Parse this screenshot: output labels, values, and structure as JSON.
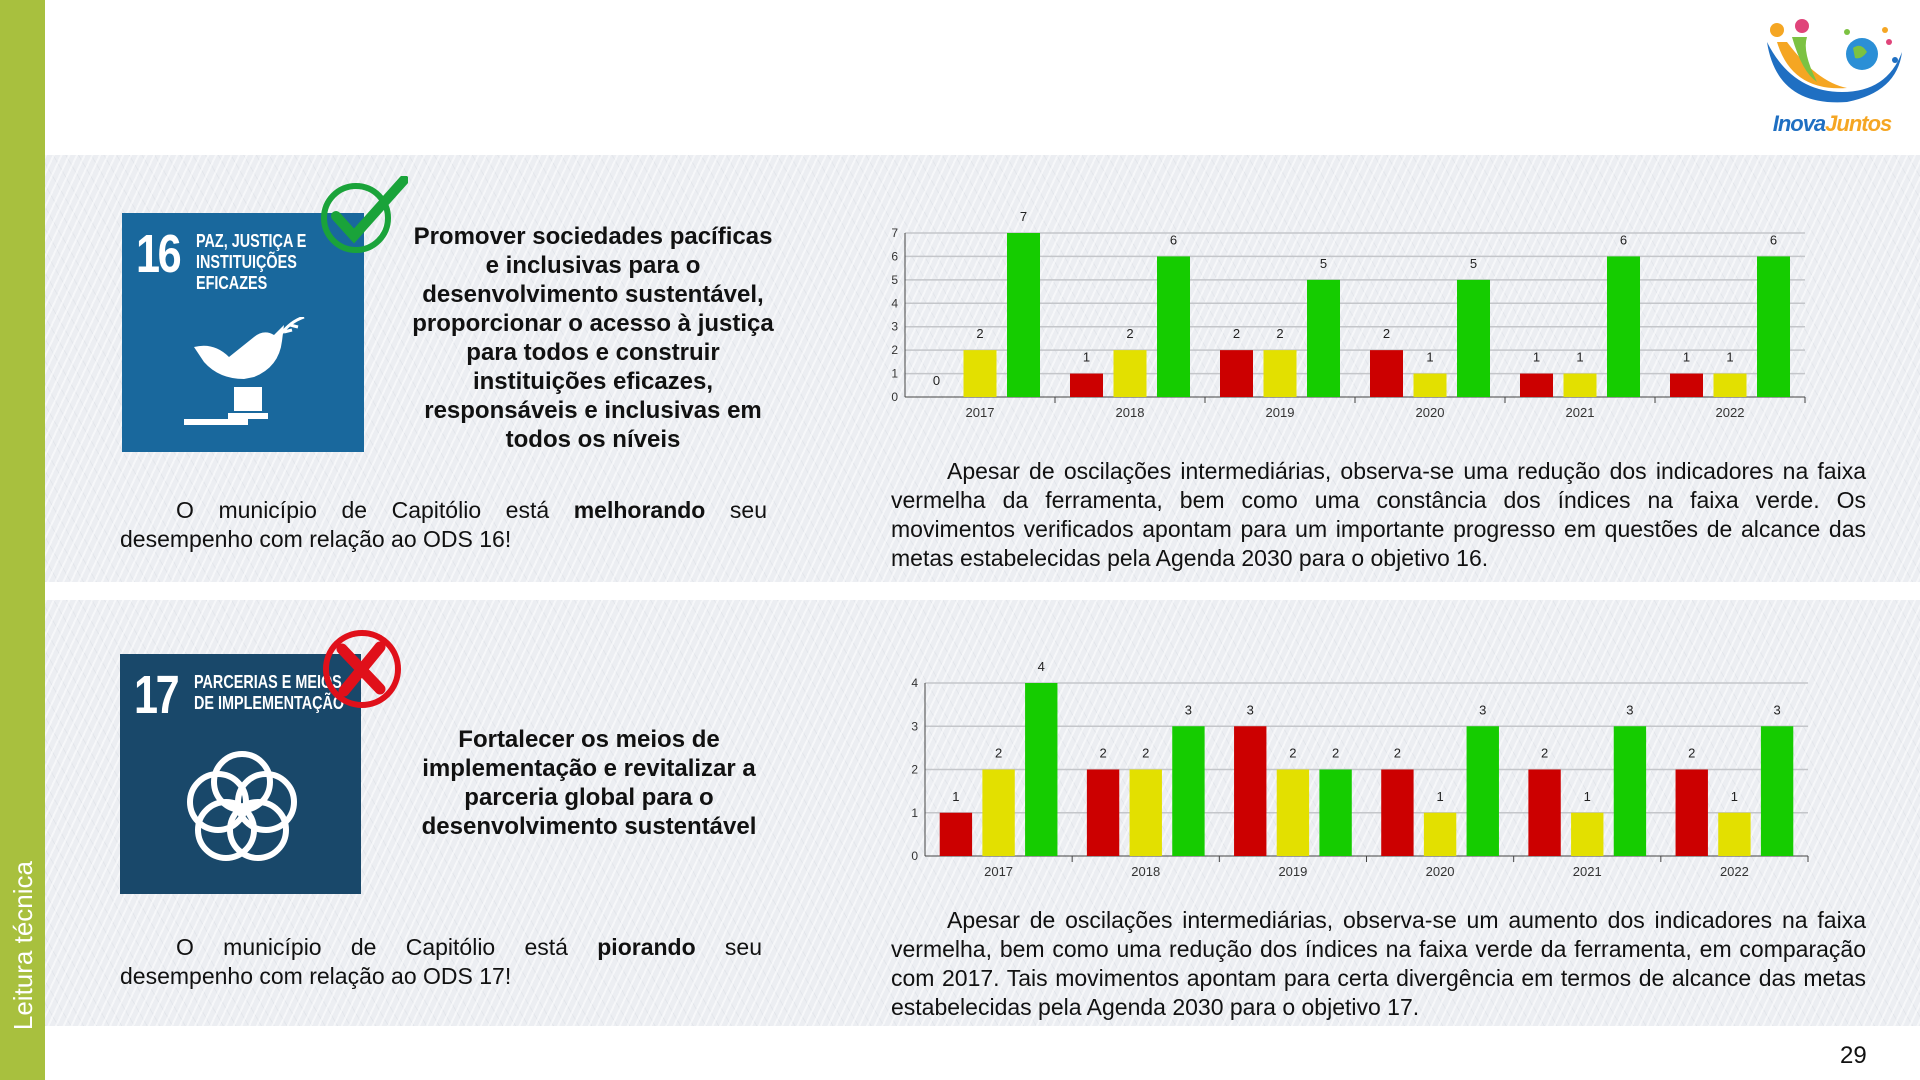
{
  "sidebar": {
    "label": "Leitura técnica"
  },
  "logo": {
    "part1": "Inova",
    "part2": "Juntos"
  },
  "page_number": "29",
  "colors": {
    "red": "#cc0000",
    "yellow": "#e3e000",
    "green": "#15cc00",
    "sdg16": "#19689d",
    "sdg17": "#19486a",
    "sidebar": "#a8c03e"
  },
  "ods16": {
    "number": "16",
    "badge_title": "PAZ, JUSTIÇA E\nINSTITUIÇÕES\nEFICAZES",
    "status_icon": "check-icon",
    "goal": "Promover sociedades pacíficas e inclusivas para o desenvolvimento sustentável, proporcionar o acesso à justiça para todos e construir instituições eficazes, responsáveis e inclusivas em todos os níveis",
    "summary_pre": "O município de Capitólio está ",
    "summary_bold": "melhorando",
    "summary_post": " seu desempenho com relação ao ODS 16!",
    "analysis": "Apesar de oscilações intermediárias, observa-se uma redução dos indicadores na faixa vermelha da ferramenta, bem como uma constância dos índices na faixa verde. Os movimentos verificados apontam para um importante progresso em questões de alcance das metas estabelecidas pela Agenda 2030 para o objetivo 16."
  },
  "ods17": {
    "number": "17",
    "badge_title": "PARCERIAS E MEIOS\nDE IMPLEMENTAÇÃO",
    "status_icon": "x-icon",
    "goal": "Fortalecer os meios de implementação e revitalizar a parceria global para o desenvolvimento sustentável",
    "summary_pre": "O município de Capitólio está ",
    "summary_bold": "piorando",
    "summary_post": " seu desempenho com relação ao ODS 17!",
    "analysis": "Apesar de oscilações intermediárias, observa-se um aumento dos indicadores na faixa vermelha, bem como uma redução dos índices na faixa verde da ferramenta, em comparação com 2017. Tais movimentos apontam para certa divergência em termos de alcance das metas estabelecidas pela Agenda 2030 para o objetivo 17."
  },
  "chart_data": [
    {
      "type": "bar",
      "title": "",
      "xlabel": "",
      "ylabel": "",
      "categories": [
        "2017",
        "2018",
        "2019",
        "2020",
        "2021",
        "2022"
      ],
      "ylim": [
        0,
        7
      ],
      "yticks": [
        0,
        1,
        2,
        3,
        4,
        5,
        6,
        7
      ],
      "grid": true,
      "series": [
        {
          "name": "vermelho",
          "color": "#cc0000",
          "values": [
            0,
            1,
            2,
            2,
            1,
            1
          ]
        },
        {
          "name": "amarelo",
          "color": "#e3e000",
          "values": [
            2,
            2,
            2,
            1,
            1,
            1
          ]
        },
        {
          "name": "verde",
          "color": "#15cc00",
          "values": [
            7,
            6,
            5,
            5,
            6,
            6
          ]
        }
      ]
    },
    {
      "type": "bar",
      "title": "",
      "xlabel": "",
      "ylabel": "",
      "categories": [
        "2017",
        "2018",
        "2019",
        "2020",
        "2021",
        "2022"
      ],
      "ylim": [
        0,
        4
      ],
      "yticks": [
        0,
        1,
        2,
        3,
        4
      ],
      "grid": true,
      "series": [
        {
          "name": "vermelho",
          "color": "#cc0000",
          "values": [
            1,
            2,
            3,
            2,
            2,
            2
          ]
        },
        {
          "name": "amarelo",
          "color": "#e3e000",
          "values": [
            2,
            2,
            2,
            1,
            1,
            1
          ]
        },
        {
          "name": "verde",
          "color": "#15cc00",
          "values": [
            4,
            3,
            2,
            3,
            3,
            3
          ]
        }
      ]
    }
  ]
}
